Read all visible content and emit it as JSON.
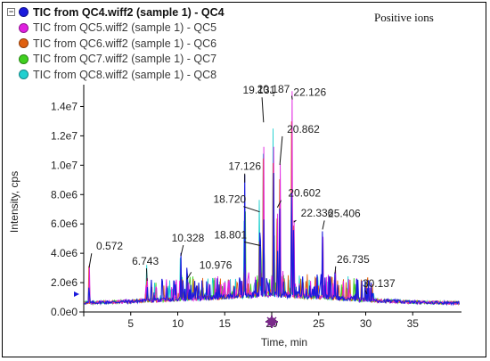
{
  "legend": {
    "items": [
      {
        "label": "TIC from QC4.wiff2 (sample 1) - QC4",
        "color": "#1a1adc"
      },
      {
        "label": "TIC from QC5.wiff2 (sample 1) - QC5",
        "color": "#e020e0"
      },
      {
        "label": "TIC from QC6.wiff2 (sample 1) - QC6",
        "color": "#e06010"
      },
      {
        "label": "TIC from QC7.wiff2 (sample 1) - QC7",
        "color": "#40d020"
      },
      {
        "label": "TIC from QC8.wiff2 (sample 1) - QC8",
        "color": "#20d0d0"
      }
    ]
  },
  "annotation": "Positive ions",
  "chart_data": {
    "type": "line",
    "xlabel": "Time, min",
    "ylabel": "Intensity, cps",
    "xlim": [
      0,
      40
    ],
    "ylim": [
      0,
      15000000
    ],
    "x_ticks": [
      5,
      10,
      15,
      20,
      25,
      30,
      35
    ],
    "x_tick_labels": [
      "5",
      "10",
      "15",
      "20",
      "25",
      "30",
      "35"
    ],
    "y_ticks": [
      0,
      2000000,
      4000000,
      6000000,
      8000000,
      10000000,
      12000000,
      14000000
    ],
    "y_tick_labels": [
      "0.0e0",
      "2.0e6",
      "4.0e6",
      "6.0e6",
      "8.0e6",
      "1.0e7",
      "1.2e7",
      "1.4e7"
    ],
    "grid": false,
    "series_colors": [
      "#1a1adc",
      "#e020e0",
      "#e06010",
      "#40d020",
      "#20d0d0"
    ],
    "peaks": [
      {
        "x": 0.572,
        "y": 2900000,
        "label": "0.572"
      },
      {
        "x": 6.743,
        "y": 2000000,
        "label": "6.743"
      },
      {
        "x": 10.328,
        "y": 3700000,
        "label": "10.328"
      },
      {
        "x": 10.976,
        "y": 2100000,
        "label": "10.976"
      },
      {
        "x": 17.126,
        "y": 8700000,
        "label": "17.126"
      },
      {
        "x": 18.72,
        "y": 6700000,
        "label": "18.720"
      },
      {
        "x": 18.801,
        "y": 4400000,
        "label": "18.801"
      },
      {
        "x": 19.131,
        "y": 12800000,
        "label": "19.131"
      },
      {
        "x": 20.187,
        "y": 14700000,
        "label": "20.187"
      },
      {
        "x": 20.602,
        "y": 7000000,
        "label": "20.602"
      },
      {
        "x": 20.862,
        "y": 9900000,
        "label": "20.862"
      },
      {
        "x": 22.126,
        "y": 14600000,
        "label": "22.126"
      },
      {
        "x": 22.336,
        "y": 6000000,
        "label": "22.336"
      },
      {
        "x": 25.406,
        "y": 5500000,
        "label": "25.406"
      },
      {
        "x": 26.735,
        "y": 2500000,
        "label": "26.735"
      },
      {
        "x": 30.137,
        "y": 1100000,
        "label": "30.137"
      }
    ],
    "baseline": [
      {
        "x": 0,
        "y": 600000
      },
      {
        "x": 5,
        "y": 700000
      },
      {
        "x": 10,
        "y": 850000
      },
      {
        "x": 15,
        "y": 1000000
      },
      {
        "x": 20,
        "y": 1200000
      },
      {
        "x": 25,
        "y": 1000000
      },
      {
        "x": 30,
        "y": 800000
      },
      {
        "x": 35,
        "y": 650000
      },
      {
        "x": 40,
        "y": 600000
      }
    ]
  }
}
